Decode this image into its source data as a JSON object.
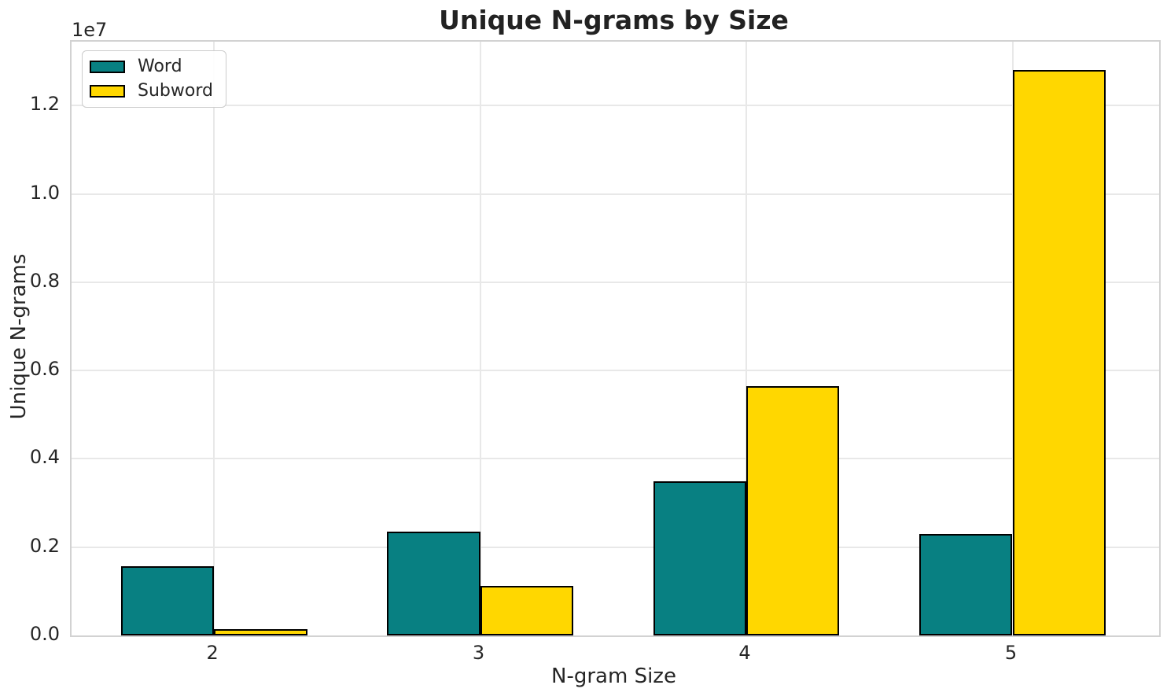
{
  "chart_data": {
    "type": "bar",
    "title": "Unique N-grams by Size",
    "xlabel": "N-gram Size",
    "ylabel": "Unique N-grams",
    "offset_text": "1e7",
    "categories": [
      "2",
      "3",
      "4",
      "5"
    ],
    "series": [
      {
        "name": "Word",
        "color": "#088082",
        "values": [
          1560000,
          2350000,
          3500000,
          2290000
        ]
      },
      {
        "name": "Subword",
        "color": "#ffd700",
        "values": [
          140000,
          1130000,
          5650000,
          12800000
        ]
      }
    ],
    "bar_width_frac": 0.35,
    "bar_edge_color": "#000000",
    "xlim": [
      -0.535,
      3.551
    ],
    "ylim": [
      0,
      13450000
    ],
    "yticks": [
      0,
      2000000,
      4000000,
      6000000,
      8000000,
      10000000,
      12000000
    ],
    "ytick_labels": [
      "0.0",
      "0.2",
      "0.4",
      "0.6",
      "0.8",
      "1.0",
      "1.2"
    ],
    "grid": true,
    "legend_position": "upper left",
    "colors": {
      "grid": "#e8e8e8",
      "spine": "#d2d2d2",
      "text": "#262626"
    }
  }
}
